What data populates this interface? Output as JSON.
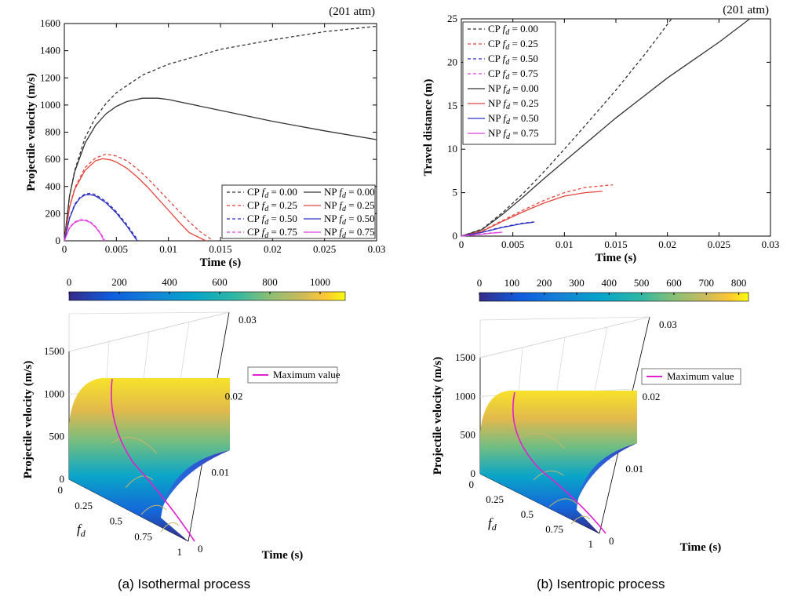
{
  "chart_data": [
    {
      "id": "a_top",
      "type": "line",
      "annotation": "(201 atm)",
      "xlabel": "Time (s)",
      "ylabel": "Projectile velocity (m/s)",
      "xlim": [
        0,
        0.03
      ],
      "ylim": [
        0,
        1600
      ],
      "xticks": [
        "0",
        "0.005",
        "0.01",
        "0.015",
        "0.02",
        "0.025",
        "0.03"
      ],
      "yticks": [
        "0",
        "200",
        "400",
        "600",
        "800",
        "1000",
        "1200",
        "1400",
        "1600"
      ],
      "legend_position": "lower-right",
      "series": [
        {
          "label": "CP",
          "fd": "0.00",
          "color": "#333333",
          "dash": "dashed",
          "points": [
            [
              0,
              0
            ],
            [
              0.0005,
              330
            ],
            [
              0.001,
              520
            ],
            [
              0.002,
              760
            ],
            [
              0.003,
              910
            ],
            [
              0.004,
              1010
            ],
            [
              0.005,
              1090
            ],
            [
              0.0075,
              1220
            ],
            [
              0.01,
              1300
            ],
            [
              0.015,
              1410
            ],
            [
              0.02,
              1480
            ],
            [
              0.025,
              1540
            ],
            [
              0.03,
              1580
            ]
          ]
        },
        {
          "label": "CP",
          "fd": "0.25",
          "color": "#e2453c",
          "dash": "dashed",
          "points": [
            [
              0,
              0
            ],
            [
              0.0005,
              250
            ],
            [
              0.001,
              390
            ],
            [
              0.002,
              540
            ],
            [
              0.003,
              610
            ],
            [
              0.004,
              638
            ],
            [
              0.005,
              625
            ],
            [
              0.006,
              590
            ],
            [
              0.007,
              530
            ],
            [
              0.008,
              460
            ],
            [
              0.009,
              380
            ],
            [
              0.01,
              300
            ],
            [
              0.011,
              220
            ],
            [
              0.012,
              140
            ],
            [
              0.013,
              70
            ],
            [
              0.0143,
              0
            ]
          ]
        },
        {
          "label": "CP",
          "fd": "0.50",
          "color": "#2b2fc0",
          "dash": "dashed",
          "points": [
            [
              0,
              0
            ],
            [
              0.0005,
              170
            ],
            [
              0.001,
              270
            ],
            [
              0.0015,
              320
            ],
            [
              0.002,
              345
            ],
            [
              0.0025,
              350
            ],
            [
              0.003,
              340
            ],
            [
              0.004,
              290
            ],
            [
              0.005,
              215
            ],
            [
              0.006,
              120
            ],
            [
              0.0071,
              0
            ]
          ]
        },
        {
          "label": "CP",
          "fd": "0.75",
          "color": "#e040e0",
          "dash": "dashed",
          "points": [
            [
              0,
              0
            ],
            [
              0.0005,
              100
            ],
            [
              0.001,
              140
            ],
            [
              0.0015,
              155
            ],
            [
              0.002,
              155
            ],
            [
              0.0025,
              140
            ],
            [
              0.003,
              105
            ],
            [
              0.0035,
              55
            ],
            [
              0.0039,
              0
            ]
          ]
        },
        {
          "label": "NP",
          "fd": "0.00",
          "color": "#333333",
          "dash": "solid",
          "points": [
            [
              0,
              0
            ],
            [
              0.0005,
              330
            ],
            [
              0.001,
              510
            ],
            [
              0.002,
              720
            ],
            [
              0.003,
              850
            ],
            [
              0.004,
              935
            ],
            [
              0.005,
              990
            ],
            [
              0.006,
              1025
            ],
            [
              0.0075,
              1050
            ],
            [
              0.009,
              1050
            ],
            [
              0.01,
              1040
            ],
            [
              0.015,
              960
            ],
            [
              0.02,
              880
            ],
            [
              0.025,
              810
            ],
            [
              0.03,
              745
            ]
          ]
        },
        {
          "label": "NP",
          "fd": "0.25",
          "color": "#e2453c",
          "dash": "solid",
          "points": [
            [
              0,
              0
            ],
            [
              0.0005,
              245
            ],
            [
              0.001,
              380
            ],
            [
              0.002,
              520
            ],
            [
              0.003,
              590
            ],
            [
              0.0037,
              605
            ],
            [
              0.0045,
              595
            ],
            [
              0.005,
              580
            ],
            [
              0.006,
              535
            ],
            [
              0.007,
              470
            ],
            [
              0.008,
              395
            ],
            [
              0.009,
              310
            ],
            [
              0.01,
              225
            ],
            [
              0.011,
              140
            ],
            [
              0.012,
              60
            ],
            [
              0.0136,
              0
            ]
          ]
        },
        {
          "label": "NP",
          "fd": "0.50",
          "color": "#2b2fc0",
          "dash": "solid",
          "points": [
            [
              0,
              0
            ],
            [
              0.0005,
              165
            ],
            [
              0.001,
              262
            ],
            [
              0.0015,
              315
            ],
            [
              0.002,
              338
            ],
            [
              0.0025,
              340
            ],
            [
              0.003,
              330
            ],
            [
              0.004,
              280
            ],
            [
              0.005,
              205
            ],
            [
              0.006,
              110
            ],
            [
              0.007,
              0
            ]
          ]
        },
        {
          "label": "NP",
          "fd": "0.75",
          "color": "#e040e0",
          "dash": "solid",
          "points": [
            [
              0,
              0
            ],
            [
              0.0005,
              95
            ],
            [
              0.001,
              135
            ],
            [
              0.0015,
              150
            ],
            [
              0.002,
              150
            ],
            [
              0.0025,
              135
            ],
            [
              0.003,
              100
            ],
            [
              0.0035,
              50
            ],
            [
              0.0038,
              0
            ]
          ]
        }
      ]
    },
    {
      "id": "b_top",
      "type": "line",
      "annotation": "(201 atm)",
      "xlabel": "Time (s)",
      "ylabel": "Travel distance (m)",
      "xlim": [
        0,
        0.03
      ],
      "ylim": [
        0,
        25
      ],
      "xticks": [
        "0",
        "0.005",
        "0.01",
        "0.015",
        "0.02",
        "0.025",
        "0.03"
      ],
      "yticks": [
        "0",
        "5",
        "10",
        "15",
        "20",
        "25"
      ],
      "legend_position": "top-left",
      "series": [
        {
          "label": "CP",
          "fd": "0.00",
          "color": "#333333",
          "dash": "dashed",
          "points": [
            [
              0,
              0
            ],
            [
              0.002,
              0.8
            ],
            [
              0.004,
              2.7
            ],
            [
              0.006,
              4.9
            ],
            [
              0.008,
              7.4
            ],
            [
              0.01,
              10.0
            ],
            [
              0.012,
              12.7
            ],
            [
              0.015,
              16.8
            ],
            [
              0.018,
              21.2
            ],
            [
              0.0204,
              25
            ]
          ]
        },
        {
          "label": "CP",
          "fd": "0.25",
          "color": "#e2453c",
          "dash": "dashed",
          "points": [
            [
              0,
              0
            ],
            [
              0.002,
              0.6
            ],
            [
              0.004,
              1.8
            ],
            [
              0.006,
              3.0
            ],
            [
              0.008,
              4.1
            ],
            [
              0.01,
              5.0
            ],
            [
              0.012,
              5.6
            ],
            [
              0.0147,
              5.9
            ]
          ]
        },
        {
          "label": "CP",
          "fd": "0.50",
          "color": "#2b2fc0",
          "dash": "dashed",
          "points": [
            [
              0,
              0
            ],
            [
              0.002,
              0.45
            ],
            [
              0.004,
              1.05
            ],
            [
              0.006,
              1.5
            ],
            [
              0.0072,
              1.65
            ]
          ]
        },
        {
          "label": "CP",
          "fd": "0.75",
          "color": "#e040e0",
          "dash": "dashed",
          "points": [
            [
              0,
              0
            ],
            [
              0.002,
              0.25
            ],
            [
              0.003,
              0.38
            ],
            [
              0.004,
              0.45
            ]
          ]
        },
        {
          "label": "NP",
          "fd": "0.00",
          "color": "#333333",
          "dash": "solid",
          "points": [
            [
              0,
              0
            ],
            [
              0.002,
              0.75
            ],
            [
              0.004,
              2.5
            ],
            [
              0.006,
              4.5
            ],
            [
              0.008,
              6.6
            ],
            [
              0.01,
              8.6
            ],
            [
              0.015,
              13.6
            ],
            [
              0.02,
              18.2
            ],
            [
              0.025,
              22.3
            ],
            [
              0.028,
              25
            ]
          ]
        },
        {
          "label": "NP",
          "fd": "0.25",
          "color": "#e2453c",
          "dash": "solid",
          "points": [
            [
              0,
              0
            ],
            [
              0.002,
              0.55
            ],
            [
              0.004,
              1.7
            ],
            [
              0.006,
              2.8
            ],
            [
              0.008,
              3.8
            ],
            [
              0.01,
              4.6
            ],
            [
              0.012,
              5.0
            ],
            [
              0.0137,
              5.15
            ]
          ]
        },
        {
          "label": "NP",
          "fd": "0.50",
          "color": "#2b2fc0",
          "dash": "solid",
          "points": [
            [
              0,
              0
            ],
            [
              0.002,
              0.42
            ],
            [
              0.004,
              1.0
            ],
            [
              0.006,
              1.45
            ],
            [
              0.007,
              1.6
            ]
          ]
        },
        {
          "label": "NP",
          "fd": "0.75",
          "color": "#e040e0",
          "dash": "solid",
          "points": [
            [
              0,
              0
            ],
            [
              0.002,
              0.22
            ],
            [
              0.003,
              0.35
            ],
            [
              0.0038,
              0.42
            ]
          ]
        }
      ]
    },
    {
      "id": "a_bottom",
      "type": "surface",
      "zlabel": "Projectile velocity (m/s)",
      "xlabel": "Time (s)",
      "ylabel": "fd",
      "zticks": [
        "0",
        "500",
        "1000",
        "1500"
      ],
      "xticks": [
        "0",
        "0.01",
        "0.02",
        "0.03"
      ],
      "yticks": [
        "0",
        "0.25",
        "0.5",
        "0.75",
        "1"
      ],
      "legend": "Maximum value",
      "colorbar_ticks": [
        "0",
        "200",
        "400",
        "600",
        "800",
        "1000"
      ],
      "colorbar_range": [
        0,
        1100
      ],
      "colormap": "parula"
    },
    {
      "id": "b_bottom",
      "type": "surface",
      "zlabel": "Projectile velocity (m/s)",
      "xlabel": "Time (s)",
      "ylabel": "fd",
      "zticks": [
        "0",
        "500",
        "1000",
        "1500"
      ],
      "xticks": [
        "0",
        "0.01",
        "0.02",
        "0.03"
      ],
      "yticks": [
        "0",
        "0.25",
        "0.5",
        "0.75",
        "1"
      ],
      "legend": "Maximum value",
      "colorbar_ticks": [
        "0",
        "100",
        "200",
        "300",
        "400",
        "500",
        "600",
        "700",
        "800"
      ],
      "colorbar_range": [
        0,
        830
      ],
      "colormap": "parula"
    }
  ],
  "captions": {
    "a": "(a) Isothermal process",
    "b": "(b) Isentropic process"
  }
}
